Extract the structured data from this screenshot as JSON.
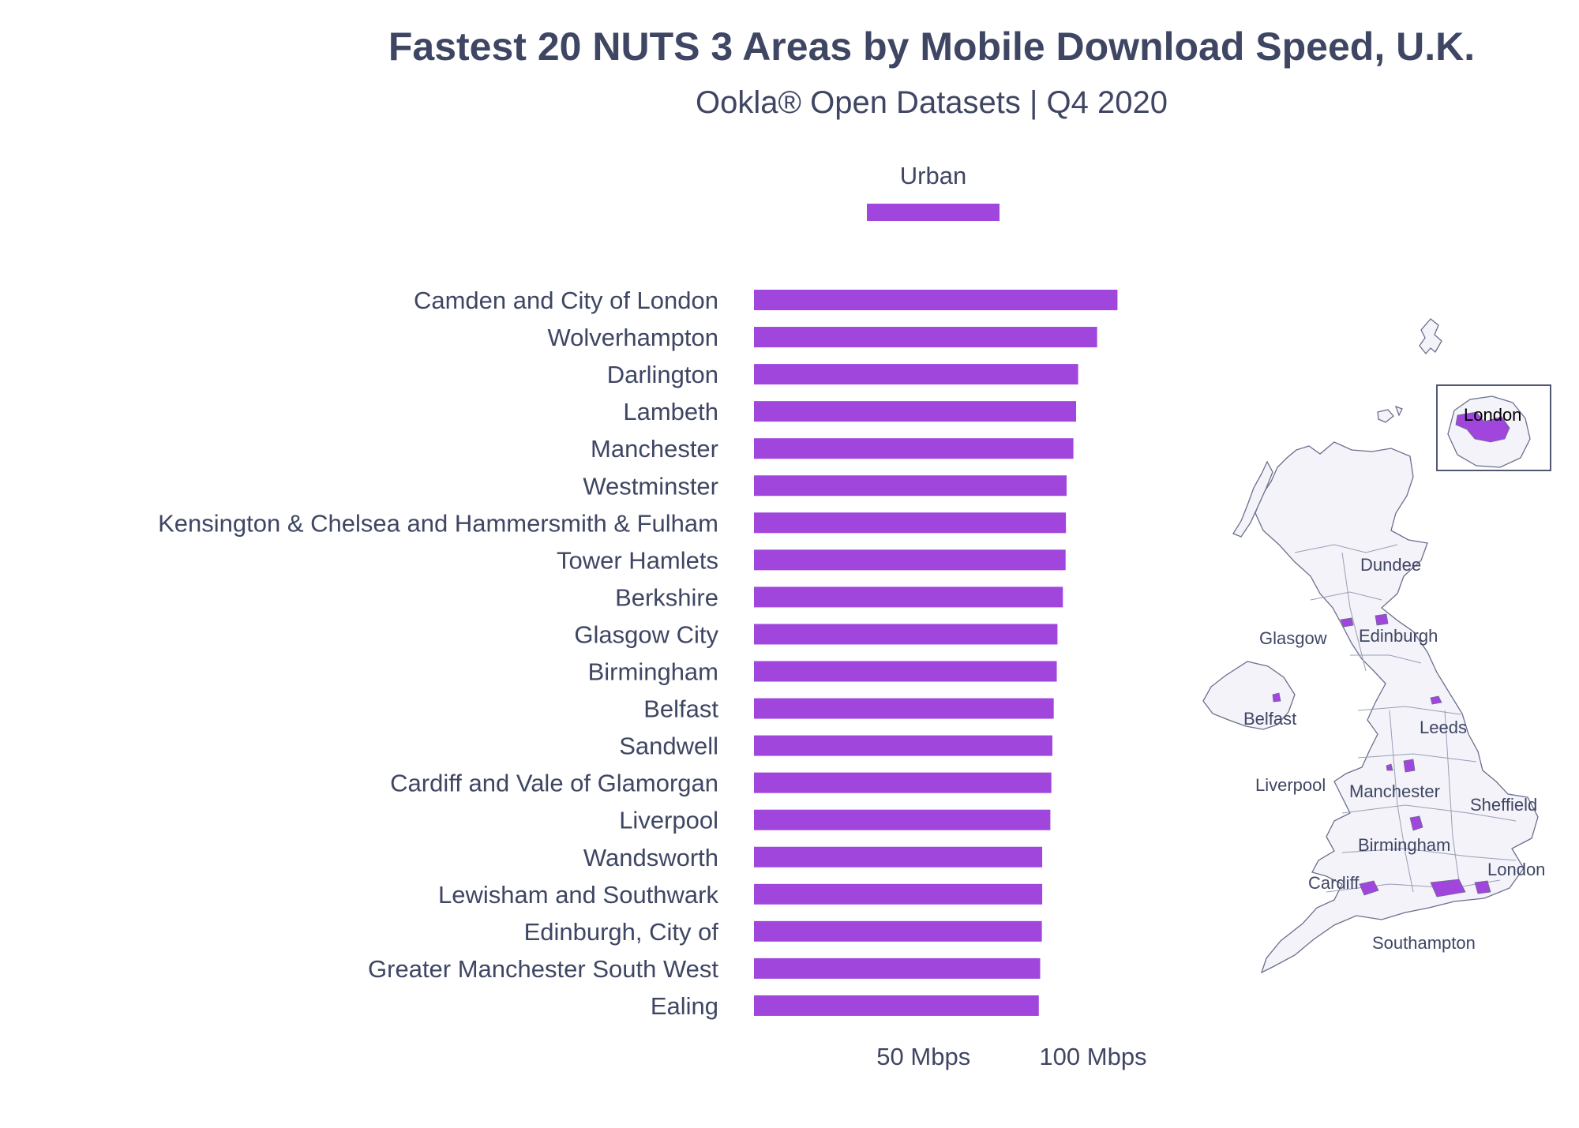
{
  "title": "Fastest 20 NUTS 3 Areas by Mobile Download Speed, U.K.",
  "subtitle": "Ookla® Open Datasets | Q4 2020",
  "colors": {
    "bar": "#a046dd",
    "text": "#3f4663",
    "map_fill": "#f4f3fa",
    "map_stroke": "#6a6f8c"
  },
  "chart_data": {
    "type": "bar",
    "orientation": "horizontal",
    "title": "Fastest 20 NUTS 3 Areas by Mobile Download Speed, U.K.",
    "subtitle": "Ookla® Open Datasets | Q4 2020",
    "legend": {
      "position": "top",
      "entries": [
        "Urban"
      ]
    },
    "categories": [
      "Camden and City of London",
      "Wolverhampton",
      "Darlington",
      "Lambeth",
      "Manchester",
      "Westminster",
      "Kensington & Chelsea and Hammersmith & Fulham",
      "Tower Hamlets",
      "Berkshire",
      "Glasgow City",
      "Birmingham",
      "Belfast",
      "Sandwell",
      "Cardiff and Vale of Glamorgan",
      "Liverpool",
      "Wandsworth",
      "Lewisham and Southwark",
      "Edinburgh, City of",
      "Greater Manchester South West",
      "Ealing"
    ],
    "series": [
      {
        "name": "Urban",
        "values": [
          107.2,
          101.2,
          95.6,
          95.0,
          94.2,
          92.2,
          92.0,
          91.9,
          91.1,
          89.5,
          89.3,
          88.4,
          88.0,
          87.7,
          87.4,
          85.0,
          85.0,
          84.9,
          84.4,
          84.0
        ]
      }
    ],
    "xlim": [
      0,
      125
    ],
    "xticks": [
      {
        "value": 50,
        "label": "50 Mbps"
      },
      {
        "value": 100,
        "label": "100 Mbps"
      }
    ],
    "grid": false
  },
  "map": {
    "labels": [
      "London",
      "Dundee",
      "Glasgow",
      "Edinburgh",
      "Belfast",
      "Leeds",
      "Liverpool",
      "Manchester",
      "Sheffield",
      "Birmingham",
      "London",
      "Cardiff",
      "Southampton"
    ]
  }
}
